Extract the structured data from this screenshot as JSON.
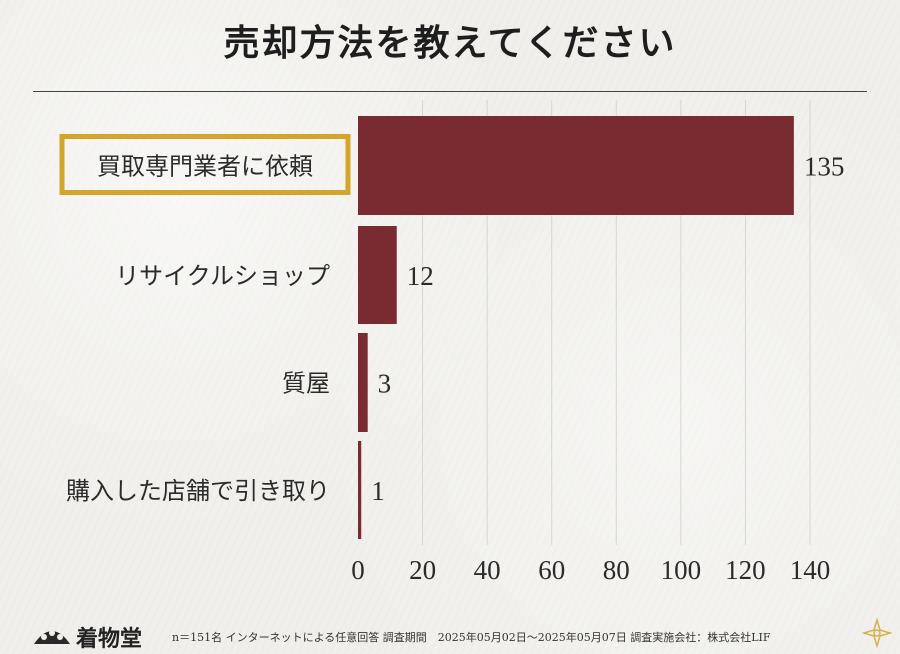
{
  "title": "売却方法を教えてください",
  "chart_data": {
    "type": "bar",
    "orientation": "horizontal",
    "categories": [
      "買取専門業者に依頼",
      "リサイクルショップ",
      "質屋",
      "購入した店舗で引き取り"
    ],
    "values": [
      135,
      12,
      3,
      1
    ],
    "value_labels": [
      "135",
      "12",
      "3",
      "1"
    ],
    "highlighted_category": "買取専門業者に依頼",
    "xlim": [
      0,
      140
    ],
    "xticks": [
      0,
      20,
      40,
      60,
      80,
      100,
      120,
      140
    ],
    "xtick_labels": [
      "0",
      "20",
      "40",
      "60",
      "80",
      "100",
      "120",
      "140"
    ],
    "grid": true,
    "bar_color": "#7a2a31",
    "highlight_color": "#d4a52a"
  },
  "footer": {
    "brand": "着物堂",
    "note": "n＝151名 インターネットによる任意回答 調査期間　2025年05月02日～2025年05月07日 調査実施会社：株式会社LIF"
  }
}
